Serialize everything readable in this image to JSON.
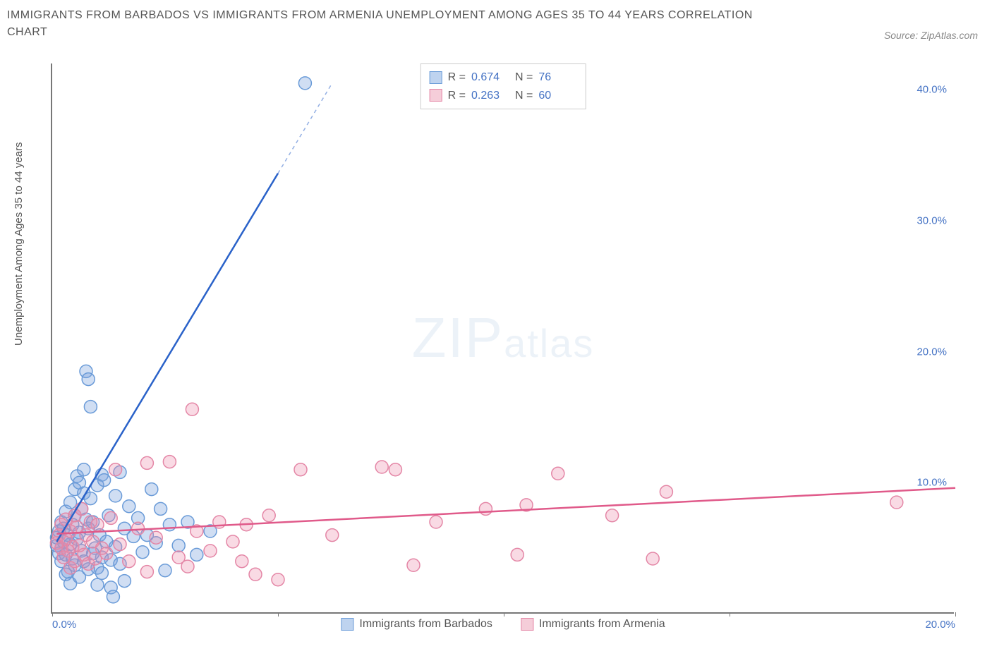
{
  "title": "IMMIGRANTS FROM BARBADOS VS IMMIGRANTS FROM ARMENIA UNEMPLOYMENT AMONG AGES 35 TO 44 YEARS CORRELATION CHART",
  "source": "Source: ZipAtlas.com",
  "y_axis_label": "Unemployment Among Ages 35 to 44 years",
  "watermark_main": "ZIP",
  "watermark_sub": "atlas",
  "chart": {
    "type": "scatter",
    "xlim": [
      0,
      20
    ],
    "ylim": [
      0,
      42
    ],
    "x_ticks": [
      0,
      5,
      10,
      15,
      20
    ],
    "x_tick_labels": [
      "0.0%",
      "",
      "",
      "",
      "20.0%"
    ],
    "y_ticks": [
      10,
      20,
      30,
      40
    ],
    "y_tick_labels": [
      "10.0%",
      "20.0%",
      "30.0%",
      "40.0%"
    ],
    "background_color": "#ffffff",
    "axis_color": "#777777",
    "tick_label_color": "#4472c4",
    "title_fontsize": 16,
    "label_fontsize": 15
  },
  "series": [
    {
      "name": "Immigrants from Barbados",
      "marker_fill": "rgba(120,160,220,0.35)",
      "marker_stroke": "#6a9bd8",
      "swatch_fill": "#bed3ef",
      "swatch_stroke": "#6a9bd8",
      "line_color": "#2a62c9",
      "R": "0.674",
      "N": "76",
      "marker_radius": 9,
      "regression": {
        "x1": 0.1,
        "y1": 5.5,
        "x2": 6.2,
        "y2": 40.5,
        "dashed_after_x": 5.0
      },
      "points": [
        [
          0.1,
          5.2
        ],
        [
          0.1,
          5.8
        ],
        [
          0.15,
          4.6
        ],
        [
          0.15,
          6.3
        ],
        [
          0.2,
          5.0
        ],
        [
          0.2,
          7.0
        ],
        [
          0.2,
          4.0
        ],
        [
          0.25,
          6.5
        ],
        [
          0.25,
          5.5
        ],
        [
          0.3,
          7.8
        ],
        [
          0.3,
          4.5
        ],
        [
          0.35,
          6.0
        ],
        [
          0.35,
          3.2
        ],
        [
          0.4,
          5.3
        ],
        [
          0.4,
          8.5
        ],
        [
          0.45,
          6.8
        ],
        [
          0.45,
          4.2
        ],
        [
          0.5,
          7.5
        ],
        [
          0.5,
          9.5
        ],
        [
          0.55,
          5.7
        ],
        [
          0.55,
          10.5
        ],
        [
          0.6,
          10.0
        ],
        [
          0.6,
          6.2
        ],
        [
          0.65,
          8.0
        ],
        [
          0.65,
          4.8
        ],
        [
          0.7,
          9.2
        ],
        [
          0.7,
          11.0
        ],
        [
          0.75,
          7.2
        ],
        [
          0.75,
          18.5
        ],
        [
          0.8,
          17.9
        ],
        [
          0.8,
          6.5
        ],
        [
          0.85,
          15.8
        ],
        [
          0.85,
          8.8
        ],
        [
          0.9,
          7.0
        ],
        [
          0.95,
          5.0
        ],
        [
          1.0,
          3.5
        ],
        [
          1.0,
          9.8
        ],
        [
          1.05,
          6.0
        ],
        [
          1.1,
          10.6
        ],
        [
          1.1,
          4.3
        ],
        [
          1.15,
          10.2
        ],
        [
          1.2,
          5.5
        ],
        [
          1.25,
          7.5
        ],
        [
          1.3,
          2.0
        ],
        [
          1.3,
          4.1
        ],
        [
          1.35,
          1.3
        ],
        [
          1.4,
          9.0
        ],
        [
          1.4,
          5.1
        ],
        [
          1.5,
          3.8
        ],
        [
          1.5,
          10.8
        ],
        [
          1.6,
          6.5
        ],
        [
          1.6,
          2.5
        ],
        [
          1.7,
          8.2
        ],
        [
          1.8,
          5.9
        ],
        [
          1.9,
          7.3
        ],
        [
          2.0,
          4.7
        ],
        [
          2.1,
          6.0
        ],
        [
          2.2,
          9.5
        ],
        [
          2.3,
          5.4
        ],
        [
          2.4,
          8.0
        ],
        [
          2.5,
          3.3
        ],
        [
          2.6,
          6.8
        ],
        [
          2.8,
          5.2
        ],
        [
          3.0,
          7.0
        ],
        [
          3.2,
          4.5
        ],
        [
          3.5,
          6.3
        ],
        [
          0.3,
          3.0
        ],
        [
          0.4,
          2.3
        ],
        [
          0.5,
          3.7
        ],
        [
          0.6,
          2.8
        ],
        [
          0.7,
          4.0
        ],
        [
          0.8,
          3.4
        ],
        [
          0.9,
          4.6
        ],
        [
          1.0,
          2.2
        ],
        [
          1.1,
          3.1
        ],
        [
          5.6,
          40.5
        ]
      ]
    },
    {
      "name": "Immigrants from Armenia",
      "marker_fill": "rgba(235,140,170,0.32)",
      "marker_stroke": "#e486a6",
      "swatch_fill": "#f5cdd9",
      "swatch_stroke": "#e486a6",
      "line_color": "#e05a8a",
      "R": "0.263",
      "N": "60",
      "marker_radius": 9,
      "regression": {
        "x1": 0.1,
        "y1": 6.1,
        "x2": 20.0,
        "y2": 9.6,
        "dashed_after_x": 999
      },
      "points": [
        [
          0.1,
          5.4
        ],
        [
          0.15,
          6.0
        ],
        [
          0.2,
          5.0
        ],
        [
          0.2,
          6.8
        ],
        [
          0.25,
          4.3
        ],
        [
          0.3,
          5.7
        ],
        [
          0.3,
          7.2
        ],
        [
          0.35,
          4.8
        ],
        [
          0.4,
          6.3
        ],
        [
          0.4,
          3.5
        ],
        [
          0.45,
          5.1
        ],
        [
          0.5,
          7.5
        ],
        [
          0.5,
          4.0
        ],
        [
          0.55,
          6.6
        ],
        [
          0.6,
          5.2
        ],
        [
          0.65,
          8.0
        ],
        [
          0.7,
          4.5
        ],
        [
          0.75,
          6.0
        ],
        [
          0.8,
          3.8
        ],
        [
          0.85,
          7.0
        ],
        [
          0.9,
          5.5
        ],
        [
          0.95,
          4.2
        ],
        [
          1.0,
          6.8
        ],
        [
          1.1,
          5.0
        ],
        [
          1.2,
          4.6
        ],
        [
          1.3,
          7.3
        ],
        [
          1.4,
          11.0
        ],
        [
          1.5,
          5.3
        ],
        [
          1.7,
          4.0
        ],
        [
          1.9,
          6.5
        ],
        [
          2.1,
          11.5
        ],
        [
          2.1,
          3.2
        ],
        [
          2.3,
          5.8
        ],
        [
          2.6,
          11.6
        ],
        [
          2.8,
          4.3
        ],
        [
          3.0,
          3.6
        ],
        [
          3.1,
          15.6
        ],
        [
          3.2,
          6.3
        ],
        [
          3.5,
          4.8
        ],
        [
          3.7,
          7.0
        ],
        [
          4.0,
          5.5
        ],
        [
          4.3,
          6.8
        ],
        [
          4.5,
          3.0
        ],
        [
          4.8,
          7.5
        ],
        [
          5.0,
          2.6
        ],
        [
          5.5,
          11.0
        ],
        [
          6.2,
          6.0
        ],
        [
          7.3,
          11.2
        ],
        [
          8.0,
          3.7
        ],
        [
          8.5,
          7.0
        ],
        [
          9.6,
          8.0
        ],
        [
          10.3,
          4.5
        ],
        [
          10.5,
          8.3
        ],
        [
          11.2,
          10.7
        ],
        [
          12.4,
          7.5
        ],
        [
          13.3,
          4.2
        ],
        [
          13.6,
          9.3
        ],
        [
          18.7,
          8.5
        ],
        [
          7.6,
          11.0
        ],
        [
          4.2,
          4.0
        ]
      ]
    }
  ],
  "bottom_legend": [
    {
      "label": "Immigrants from Barbados",
      "fill": "#bed3ef",
      "stroke": "#6a9bd8"
    },
    {
      "label": "Immigrants from Armenia",
      "fill": "#f5cdd9",
      "stroke": "#e486a6"
    }
  ]
}
